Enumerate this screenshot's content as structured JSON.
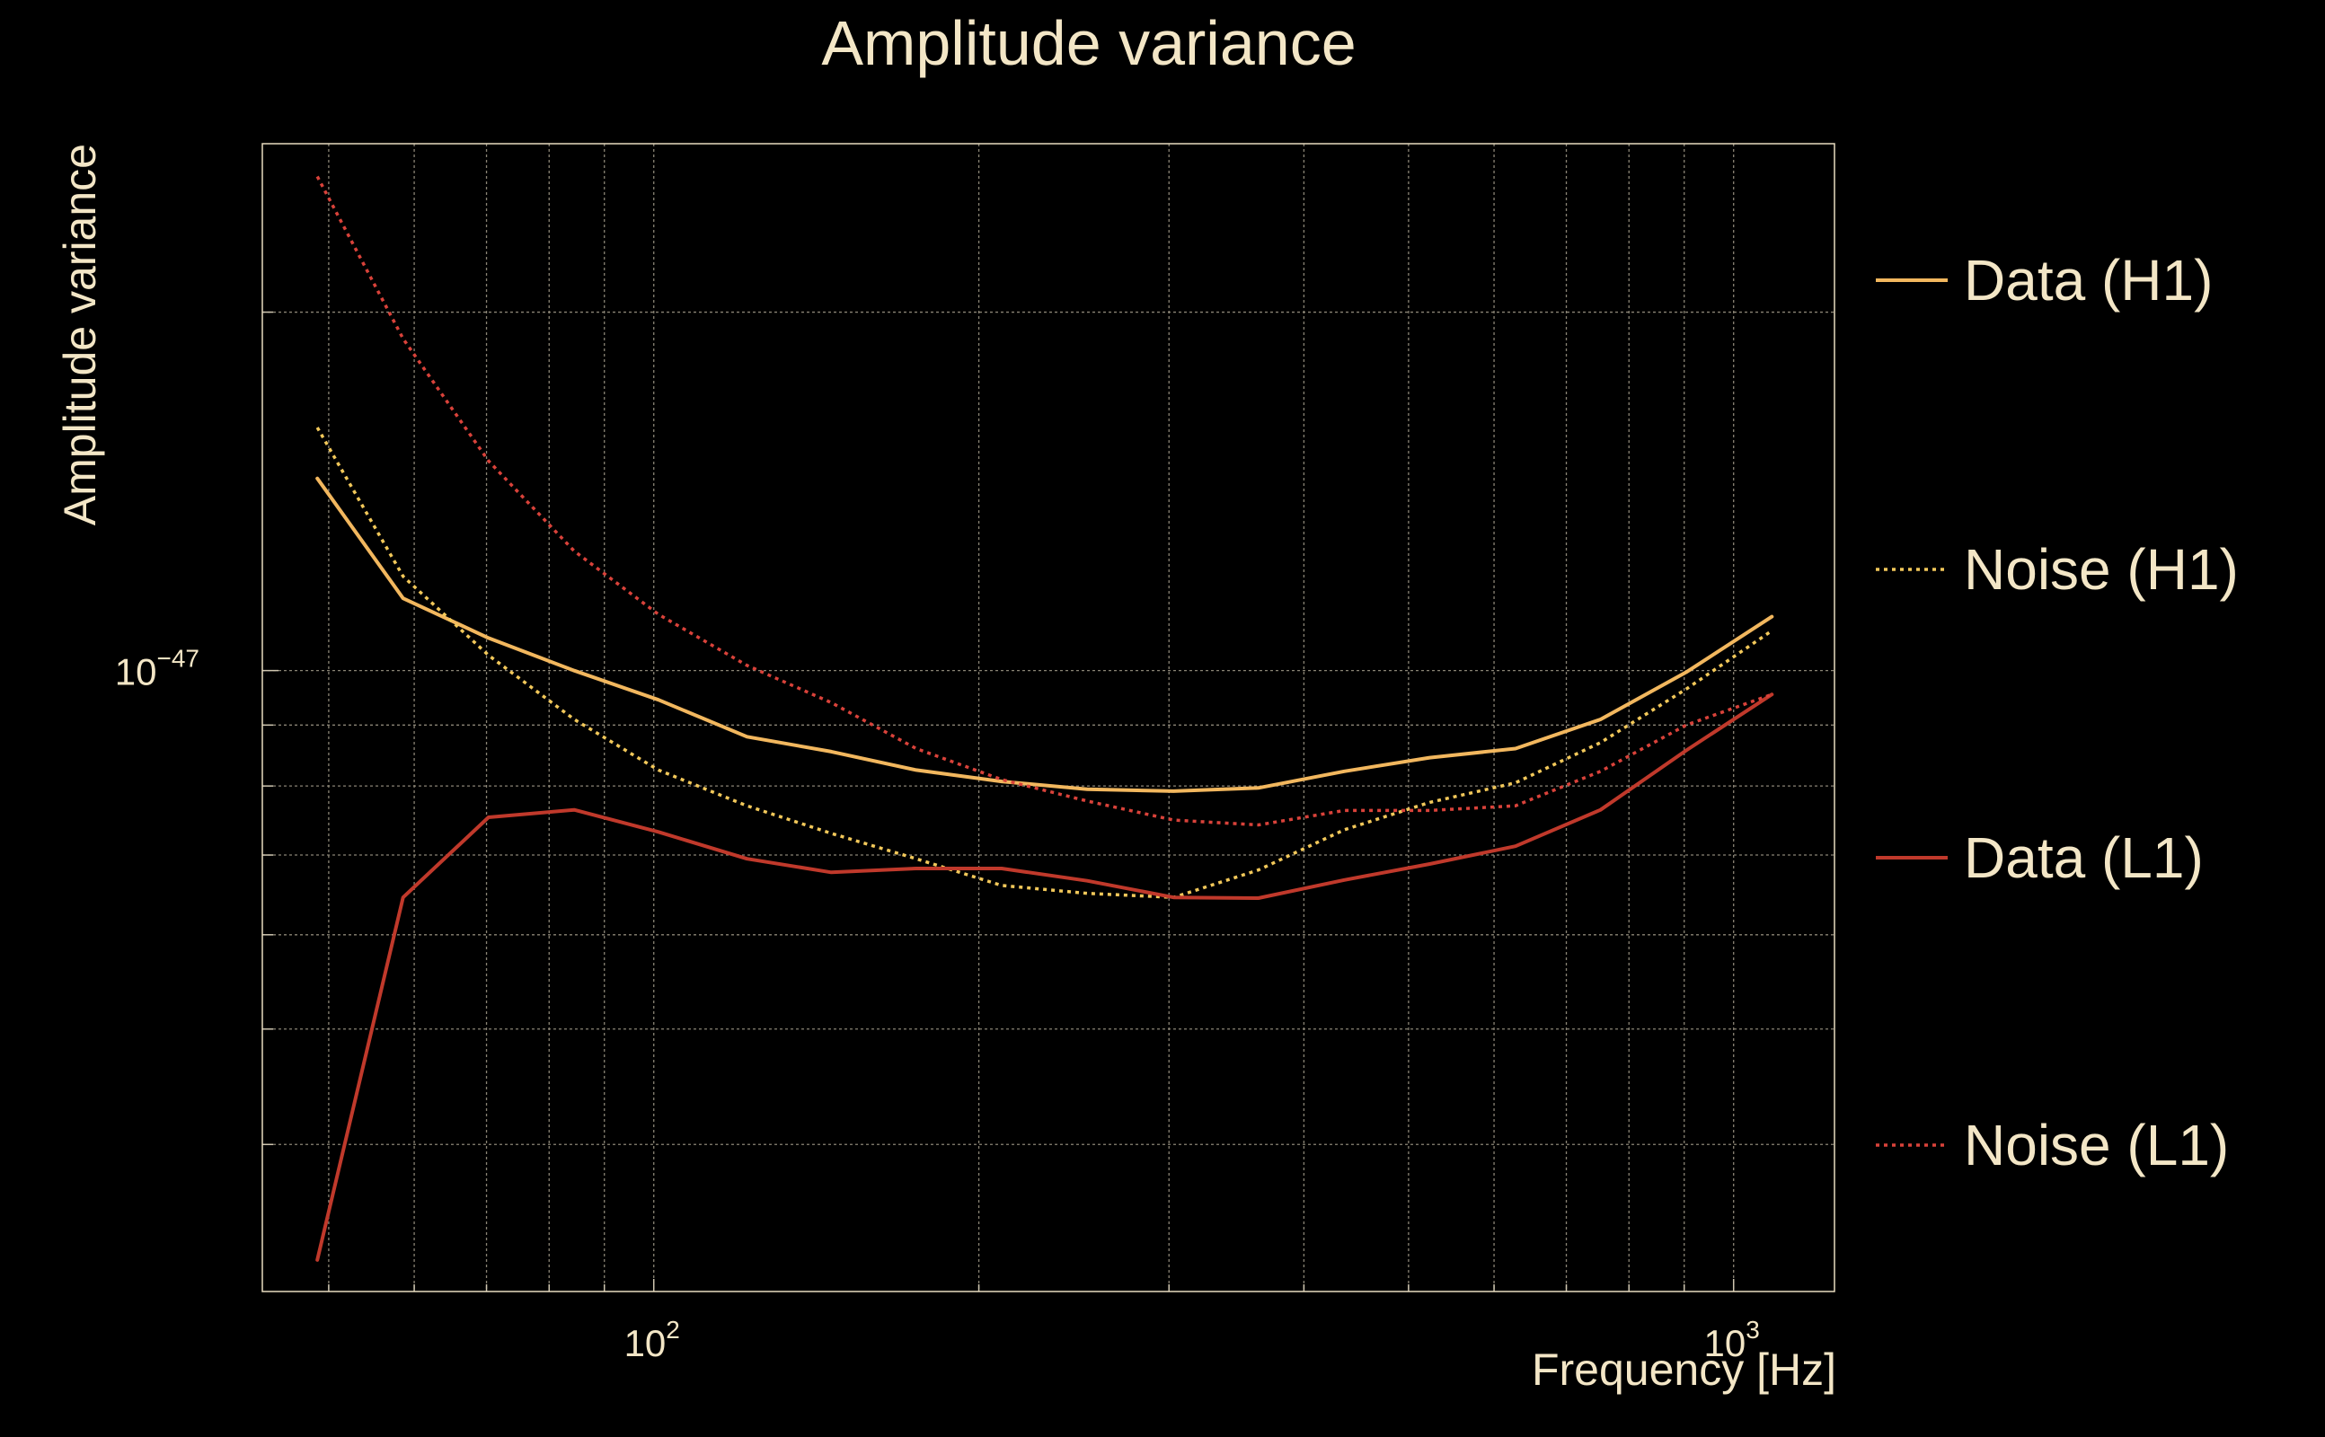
{
  "chart_data": {
    "type": "line",
    "title": "Amplitude variance",
    "xlabel": "Frequency [Hz]",
    "ylabel": "Amplitude variance",
    "xscale": "log",
    "yscale": "log",
    "xlim": [
      43.4,
      1240
    ],
    "ylim": [
      3.01e-48,
      2.77e-47
    ],
    "x_ticks": [
      {
        "value": 100,
        "base": "10",
        "exp": "2"
      },
      {
        "value": 1000,
        "base": "10",
        "exp": "3"
      }
    ],
    "y_ticks": [
      {
        "value": 1e-47,
        "base": "10",
        "exp": "−47"
      }
    ],
    "grid": true,
    "legend_position": "right",
    "x": [
      48.8,
      58.6,
      70.3,
      84.4,
      101,
      122,
      146,
      175,
      210,
      252,
      303,
      363,
      436,
      523,
      628,
      753,
      904,
      1085
    ],
    "series": [
      {
        "name": "Data (H1)",
        "color": "#f2b75e",
        "style": "solid",
        "values": [
          1.45e-47,
          1.15e-47,
          1.065e-47,
          1e-47,
          9.45e-48,
          8.8e-48,
          8.55e-48,
          8.25e-48,
          8.07e-48,
          7.95e-48,
          7.92e-48,
          7.97e-48,
          8.23e-48,
          8.45e-48,
          8.6e-48,
          9.1e-48,
          9.97e-48,
          1.11e-47
        ]
      },
      {
        "name": "Noise (H1)",
        "color": "#f2c85a",
        "style": "dotted",
        "values": [
          1.6e-47,
          1.2e-47,
          1.03e-47,
          9.1e-48,
          8.25e-48,
          7.7e-48,
          7.3e-48,
          6.95e-48,
          6.6e-48,
          6.5e-48,
          6.45e-48,
          6.8e-48,
          7.35e-48,
          7.75e-48,
          8.05e-48,
          8.7e-48,
          9.65e-48,
          1.08e-47
        ]
      },
      {
        "name": "Data (L1)",
        "color": "#c0392b",
        "style": "solid",
        "values": [
          3.2e-48,
          6.45e-48,
          7.53e-48,
          7.64e-48,
          7.32e-48,
          6.95e-48,
          6.77e-48,
          6.82e-48,
          6.82e-48,
          6.66e-48,
          6.45e-48,
          6.44e-48,
          6.67e-48,
          6.88e-48,
          7.12e-48,
          7.64e-48,
          8.57e-48,
          9.55e-48
        ]
      },
      {
        "name": "Noise (L1)",
        "color": "#d9423a",
        "style": "dotted",
        "values": [
          2.6e-47,
          1.9e-47,
          1.5e-47,
          1.26e-47,
          1.115e-47,
          1.01e-47,
          9.4e-48,
          8.6e-48,
          8.1e-48,
          7.77e-48,
          7.49e-48,
          7.42e-48,
          7.63e-48,
          7.63e-48,
          7.7e-48,
          8.23e-48,
          9e-48,
          9.55e-48
        ]
      }
    ]
  }
}
